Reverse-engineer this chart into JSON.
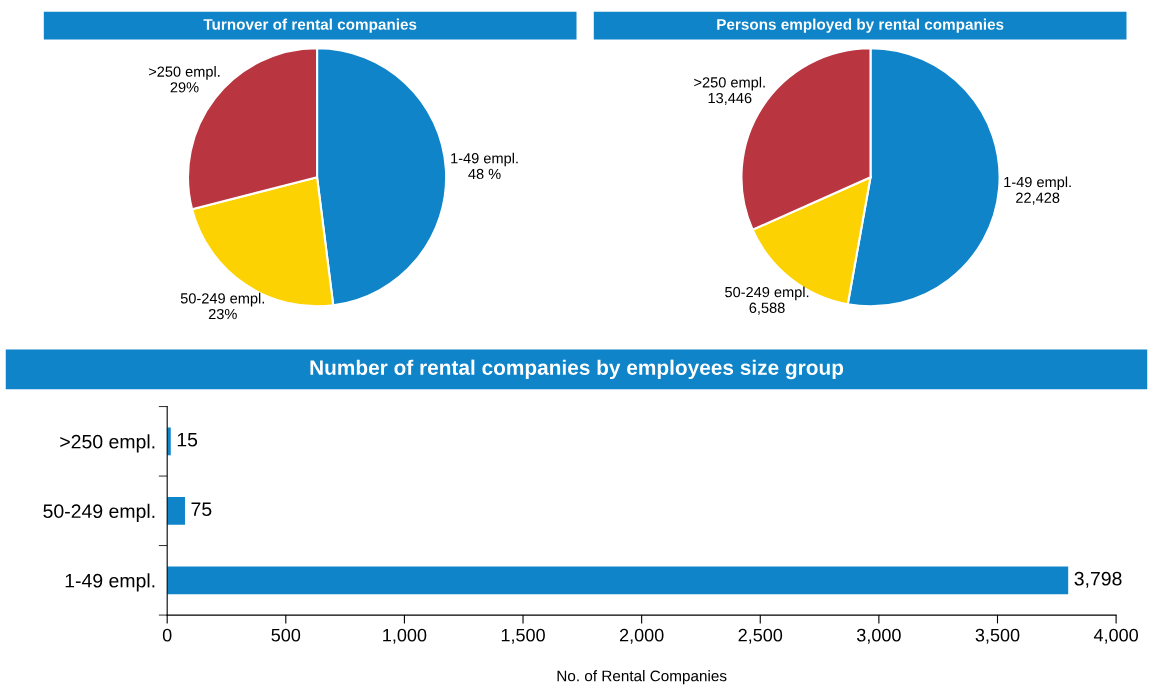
{
  "chart_data": [
    {
      "type": "pie",
      "title": "Turnover of rental companies",
      "categories": [
        "1-49 empl.",
        "50-249 empl.",
        ">250 empl."
      ],
      "values": [
        48,
        23,
        29
      ],
      "value_labels": [
        "48 %",
        "23%",
        "29%"
      ],
      "colors": [
        "#0f84c8",
        "#fcd202",
        "#b93641"
      ]
    },
    {
      "type": "pie",
      "title": "Persons employed by rental companies",
      "categories": [
        "1-49 empl.",
        "50-249 empl.",
        ">250 empl."
      ],
      "values": [
        22428,
        6588,
        13446
      ],
      "value_labels": [
        "22,428",
        "6,588",
        "13,446"
      ],
      "colors": [
        "#0f84c8",
        "#fcd202",
        "#b93641"
      ]
    },
    {
      "type": "bar",
      "orientation": "horizontal",
      "title": "Number of rental companies by employees size group",
      "xlabel": "No. of Rental Companies",
      "categories": [
        ">250 empl.",
        "50-249 empl.",
        "1-49 empl."
      ],
      "values": [
        15,
        75,
        3798
      ],
      "value_labels": [
        "15",
        "75",
        "3,798"
      ],
      "color": "#0f84c8",
      "xlim": [
        0,
        4000
      ],
      "xticks": [
        0,
        {
          "value": 500,
          "label": "500"
        },
        {
          "value": 1000,
          "label": "1,000"
        },
        {
          "value": 1500,
          "label": "1,500"
        },
        {
          "value": 2000,
          "label": "2,000"
        },
        {
          "value": 2500,
          "label": "2,500"
        },
        {
          "value": 3000,
          "label": "3,000"
        },
        {
          "value": 3500,
          "label": "3,500"
        },
        {
          "value": 4000,
          "label": "4,000"
        }
      ]
    }
  ]
}
